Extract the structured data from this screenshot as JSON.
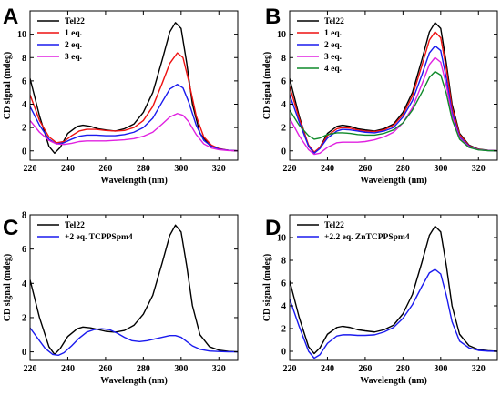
{
  "chart_data": [
    {
      "panel": "A",
      "type": "line",
      "xlabel": "Wavelength (nm)",
      "ylabel": "CD signal (mdeg)",
      "xlim": [
        220,
        330
      ],
      "ylim": [
        -0.8,
        12
      ],
      "xticks": [
        220,
        240,
        260,
        280,
        300,
        320
      ],
      "yticks": [
        0,
        2,
        4,
        6,
        8,
        10
      ],
      "legend_position": "top-left",
      "series": [
        {
          "name": "Tel22",
          "color": "#000000",
          "x": [
            220,
            225,
            230,
            233,
            236,
            240,
            245,
            248,
            252,
            256,
            260,
            265,
            270,
            275,
            280,
            285,
            290,
            294,
            297,
            300,
            303,
            306,
            310,
            315,
            320,
            325,
            330
          ],
          "y": [
            6.2,
            3.0,
            0.4,
            -0.2,
            0.3,
            1.5,
            2.1,
            2.2,
            2.1,
            1.9,
            1.8,
            1.7,
            1.9,
            2.3,
            3.3,
            5.0,
            7.8,
            10.2,
            11.0,
            10.5,
            7.5,
            4.0,
            1.5,
            0.5,
            0.15,
            0.05,
            0
          ]
        },
        {
          "name": "1 eq.",
          "color": "#ee1111",
          "x": [
            220,
            225,
            230,
            234,
            238,
            242,
            246,
            250,
            255,
            260,
            265,
            270,
            275,
            280,
            285,
            290,
            294,
            298,
            301,
            304,
            308,
            312,
            316,
            320,
            325,
            330
          ],
          "y": [
            4.8,
            2.6,
            1.2,
            0.7,
            0.8,
            1.3,
            1.7,
            1.85,
            1.85,
            1.75,
            1.7,
            1.75,
            2.0,
            2.6,
            3.8,
            5.8,
            7.5,
            8.4,
            8.0,
            6.0,
            3.0,
            1.2,
            0.5,
            0.2,
            0.05,
            0
          ]
        },
        {
          "name": "2 eq.",
          "color": "#1a1aee",
          "x": [
            220,
            225,
            230,
            234,
            238,
            242,
            246,
            250,
            255,
            260,
            265,
            270,
            275,
            280,
            285,
            290,
            294,
            298,
            301,
            304,
            308,
            312,
            316,
            320,
            325,
            330
          ],
          "y": [
            3.8,
            2.2,
            1.0,
            0.6,
            0.7,
            1.0,
            1.25,
            1.35,
            1.35,
            1.3,
            1.3,
            1.4,
            1.6,
            2.0,
            2.8,
            4.2,
            5.3,
            5.7,
            5.4,
            4.2,
            2.2,
            0.9,
            0.4,
            0.15,
            0.05,
            0
          ]
        },
        {
          "name": "3 eq.",
          "color": "#e020e0",
          "x": [
            220,
            225,
            230,
            234,
            238,
            242,
            246,
            250,
            255,
            260,
            265,
            270,
            275,
            280,
            285,
            290,
            294,
            298,
            301,
            304,
            308,
            312,
            316,
            320,
            325,
            330
          ],
          "y": [
            2.6,
            1.6,
            0.9,
            0.6,
            0.55,
            0.65,
            0.8,
            0.85,
            0.85,
            0.85,
            0.9,
            0.95,
            1.05,
            1.25,
            1.6,
            2.3,
            2.9,
            3.2,
            3.05,
            2.5,
            1.4,
            0.6,
            0.25,
            0.1,
            0.03,
            0
          ]
        }
      ]
    },
    {
      "panel": "B",
      "type": "line",
      "xlabel": "Wavelength (nm)",
      "ylabel": "CD signal (mdeg)",
      "xlim": [
        220,
        330
      ],
      "ylim": [
        -0.8,
        12
      ],
      "xticks": [
        220,
        240,
        260,
        280,
        300,
        320
      ],
      "yticks": [
        0,
        2,
        4,
        6,
        8,
        10
      ],
      "legend_position": "top-left",
      "series": [
        {
          "name": "Tel22",
          "color": "#000000",
          "x": [
            220,
            225,
            230,
            233,
            236,
            240,
            245,
            248,
            252,
            256,
            260,
            265,
            270,
            275,
            280,
            285,
            290,
            294,
            297,
            300,
            303,
            306,
            310,
            315,
            320,
            325,
            330
          ],
          "y": [
            6.2,
            3.0,
            0.4,
            -0.2,
            0.3,
            1.5,
            2.1,
            2.2,
            2.1,
            1.9,
            1.8,
            1.7,
            1.9,
            2.3,
            3.3,
            5.0,
            7.8,
            10.2,
            11.0,
            10.5,
            7.5,
            4.0,
            1.5,
            0.5,
            0.15,
            0.05,
            0
          ]
        },
        {
          "name": "1 eq.",
          "color": "#ee1111",
          "x": [
            220,
            225,
            230,
            233,
            236,
            240,
            245,
            248,
            252,
            256,
            260,
            265,
            270,
            275,
            280,
            285,
            290,
            294,
            297,
            300,
            303,
            306,
            310,
            315,
            320,
            325,
            330
          ],
          "y": [
            5.5,
            2.8,
            0.5,
            -0.1,
            0.3,
            1.3,
            1.9,
            2.0,
            1.95,
            1.8,
            1.7,
            1.65,
            1.8,
            2.2,
            3.1,
            4.7,
            7.3,
            9.5,
            10.2,
            9.7,
            7.0,
            3.7,
            1.4,
            0.45,
            0.12,
            0.04,
            0
          ]
        },
        {
          "name": "2 eq.",
          "color": "#1a1aee",
          "x": [
            220,
            225,
            230,
            233,
            236,
            240,
            245,
            248,
            252,
            256,
            260,
            265,
            270,
            275,
            280,
            285,
            290,
            294,
            297,
            300,
            303,
            306,
            310,
            315,
            320,
            325,
            330
          ],
          "y": [
            4.8,
            2.5,
            0.4,
            -0.2,
            0.2,
            1.1,
            1.7,
            1.85,
            1.8,
            1.7,
            1.6,
            1.55,
            1.7,
            2.0,
            2.9,
            4.3,
            6.5,
            8.4,
            9.0,
            8.6,
            6.2,
            3.3,
            1.2,
            0.4,
            0.1,
            0.03,
            0
          ]
        },
        {
          "name": "3 eq.",
          "color": "#e020e0",
          "x": [
            220,
            225,
            230,
            233,
            236,
            240,
            245,
            248,
            252,
            256,
            260,
            265,
            270,
            275,
            280,
            285,
            290,
            294,
            297,
            300,
            303,
            306,
            310,
            315,
            320,
            325,
            330
          ],
          "y": [
            2.8,
            1.3,
            0.1,
            -0.3,
            -0.2,
            0.3,
            0.7,
            0.75,
            0.75,
            0.75,
            0.8,
            0.95,
            1.2,
            1.6,
            2.4,
            3.7,
            5.7,
            7.4,
            8.0,
            7.6,
            5.6,
            3.0,
            1.1,
            0.35,
            0.1,
            0.03,
            0
          ]
        },
        {
          "name": "4 eq.",
          "color": "#0f8a2a",
          "x": [
            220,
            225,
            230,
            233,
            236,
            240,
            245,
            248,
            252,
            256,
            260,
            265,
            270,
            275,
            280,
            285,
            290,
            294,
            297,
            300,
            303,
            306,
            310,
            315,
            320,
            325,
            330
          ],
          "y": [
            3.5,
            2.2,
            1.3,
            1.0,
            1.1,
            1.4,
            1.55,
            1.55,
            1.5,
            1.4,
            1.35,
            1.35,
            1.5,
            1.8,
            2.4,
            3.5,
            5.0,
            6.3,
            6.8,
            6.5,
            4.9,
            2.7,
            1.0,
            0.3,
            0.08,
            0.02,
            0
          ]
        }
      ]
    },
    {
      "panel": "C",
      "type": "line",
      "xlabel": "Wavelength (nm)",
      "ylabel": "CD signal (mdeg)",
      "xlim": [
        220,
        330
      ],
      "ylim": [
        -0.5,
        8
      ],
      "xticks": [
        220,
        240,
        260,
        280,
        300,
        320
      ],
      "yticks": [
        0,
        2,
        4,
        6,
        8
      ],
      "legend_position": "top-left",
      "series": [
        {
          "name": "Tel22",
          "color": "#000000",
          "x": [
            220,
            225,
            230,
            233,
            236,
            240,
            245,
            248,
            252,
            256,
            260,
            265,
            270,
            275,
            280,
            285,
            290,
            294,
            297,
            300,
            303,
            306,
            310,
            315,
            320,
            325,
            330
          ],
          "y": [
            4.2,
            2.0,
            0.3,
            -0.15,
            0.2,
            0.9,
            1.35,
            1.45,
            1.4,
            1.3,
            1.2,
            1.15,
            1.25,
            1.55,
            2.2,
            3.3,
            5.2,
            6.8,
            7.4,
            7.0,
            5.0,
            2.7,
            1.0,
            0.3,
            0.1,
            0.03,
            0
          ]
        },
        {
          "name": "+2 eq. TCPPSpm4",
          "color": "#1a1aee",
          "x": [
            220,
            224,
            228,
            232,
            235,
            238,
            242,
            246,
            250,
            254,
            258,
            262,
            266,
            270,
            274,
            278,
            282,
            286,
            290,
            294,
            297,
            300,
            303,
            306,
            310,
            315,
            320,
            325,
            330
          ],
          "y": [
            1.4,
            0.8,
            0.2,
            -0.15,
            -0.2,
            -0.05,
            0.35,
            0.8,
            1.15,
            1.3,
            1.35,
            1.3,
            1.1,
            0.85,
            0.65,
            0.6,
            0.65,
            0.75,
            0.85,
            0.95,
            0.95,
            0.85,
            0.6,
            0.35,
            0.15,
            0.05,
            0.02,
            0,
            0
          ]
        }
      ]
    },
    {
      "panel": "D",
      "type": "line",
      "xlabel": "Wavelength (nm)",
      "ylabel": "CD signal (mdeg)",
      "xlim": [
        220,
        330
      ],
      "ylim": [
        -0.8,
        12
      ],
      "xticks": [
        220,
        240,
        260,
        280,
        300,
        320
      ],
      "yticks": [
        0,
        2,
        4,
        6,
        8,
        10
      ],
      "legend_position": "top-left",
      "series": [
        {
          "name": "Tel22",
          "color": "#000000",
          "x": [
            220,
            225,
            230,
            233,
            236,
            240,
            245,
            248,
            252,
            256,
            260,
            265,
            270,
            275,
            280,
            285,
            290,
            294,
            297,
            300,
            303,
            306,
            310,
            315,
            320,
            325,
            330
          ],
          "y": [
            6.2,
            3.0,
            0.4,
            -0.2,
            0.3,
            1.5,
            2.1,
            2.2,
            2.1,
            1.9,
            1.8,
            1.7,
            1.9,
            2.3,
            3.3,
            5.0,
            7.8,
            10.2,
            11.0,
            10.5,
            7.5,
            4.0,
            1.5,
            0.5,
            0.15,
            0.05,
            0
          ]
        },
        {
          "name": "+2.2 eq. ZnTCPPSpm4",
          "color": "#1a1aee",
          "x": [
            220,
            225,
            230,
            233,
            236,
            240,
            245,
            248,
            252,
            256,
            260,
            265,
            270,
            275,
            280,
            285,
            290,
            294,
            297,
            300,
            303,
            306,
            310,
            315,
            320,
            325,
            330
          ],
          "y": [
            4.6,
            2.2,
            0.0,
            -0.6,
            -0.3,
            0.7,
            1.35,
            1.45,
            1.45,
            1.4,
            1.4,
            1.45,
            1.7,
            2.1,
            2.9,
            4.1,
            5.7,
            6.9,
            7.2,
            6.8,
            4.9,
            2.6,
            0.9,
            0.3,
            0.08,
            0.02,
            0
          ]
        }
      ]
    }
  ]
}
